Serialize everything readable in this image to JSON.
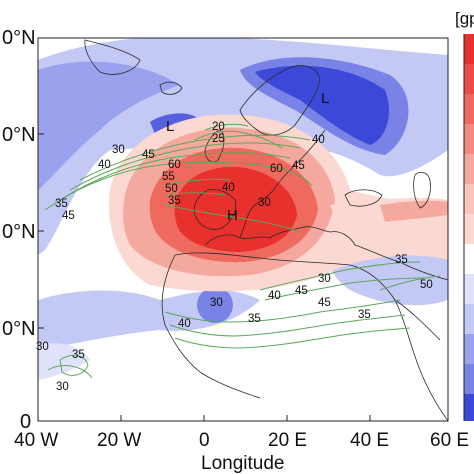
{
  "axes": {
    "y_ticks": [
      "0°N",
      "0°N",
      "0°N",
      "0°N",
      "0"
    ],
    "x_ticks": [
      "40 W",
      "20 W",
      "0",
      "20 E",
      "40 E",
      "60 E"
    ],
    "x_label": "Longitude"
  },
  "colorbar": {
    "title": "[gp"
  },
  "centers": {
    "high": "H",
    "low_north": "L",
    "low_west": "L"
  },
  "contour_labels": [
    "30",
    "40",
    "45",
    "60",
    "55",
    "50",
    "35",
    "20",
    "25",
    "40",
    "30",
    "35",
    "45",
    "40",
    "45",
    "30",
    "35",
    "40",
    "45",
    "50",
    "60",
    "35",
    "30",
    "40",
    "35",
    "45",
    "30",
    "30",
    "35"
  ],
  "colors": {
    "positive_strong": "#e8302c",
    "positive_mid": "#f27a6e",
    "positive_light": "#f9c4bc",
    "negative_strong": "#3c49d8",
    "negative_mid": "#7983e6",
    "negative_light": "#c3c8f5",
    "contour": "#5aa85a",
    "coast": "#2a2a2a"
  }
}
